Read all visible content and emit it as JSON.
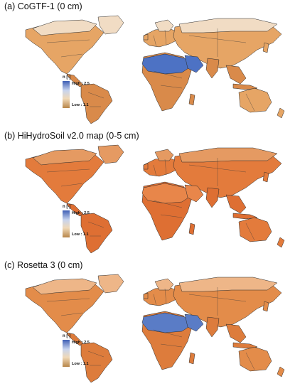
{
  "panels": [
    {
      "title": "(a)  CoGTF-1 (0 cm)",
      "legend": {
        "title": "n [-]",
        "high": "High : 2.5",
        "low": "Low : 1.1"
      },
      "palette": {
        "base": "#e6a565",
        "north": "#f1dcc4",
        "tropic": "#d98a4a",
        "desert": "#4d72c4"
      }
    },
    {
      "title": "(b) HiHydroSoil v2.0 map (0-5 cm)",
      "legend": {
        "title": "n [-]",
        "high": "High : 2.5",
        "low": "Low : 1.1"
      },
      "palette": {
        "base": "#e37b3c",
        "north": "#e59a62",
        "tropic": "#de6f33",
        "desert": "#e8864a"
      }
    },
    {
      "title": "(c) Rosetta 3 (0 cm)",
      "legend": {
        "title": "n [-]",
        "high": "High : 2.5",
        "low": "Low : 1.1"
      },
      "palette": {
        "base": "#e38c4a",
        "north": "#eeb688",
        "tropic": "#dd7c3c",
        "desert": "#5a7cc6"
      }
    }
  ]
}
